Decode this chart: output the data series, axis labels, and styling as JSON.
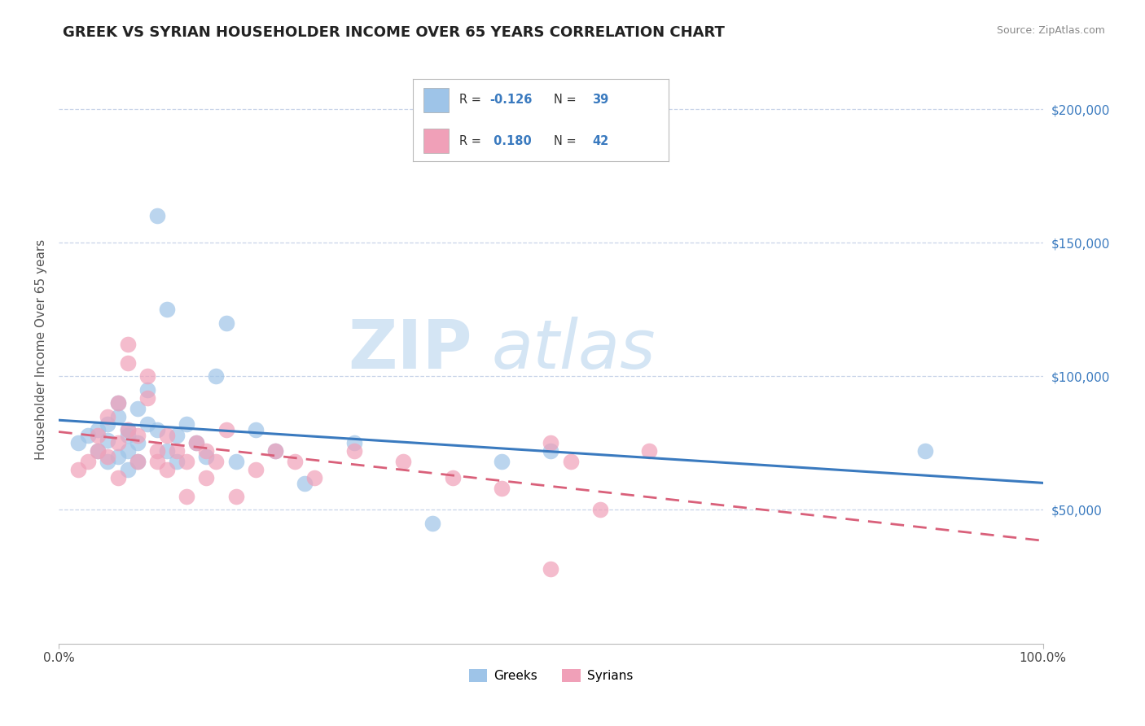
{
  "title": "GREEK VS SYRIAN HOUSEHOLDER INCOME OVER 65 YEARS CORRELATION CHART",
  "source": "Source: ZipAtlas.com",
  "ylabel": "Householder Income Over 65 years",
  "xlim": [
    0.0,
    1.0
  ],
  "ylim": [
    0,
    220000
  ],
  "xtick_labels": [
    "0.0%",
    "100.0%"
  ],
  "ytick_labels": [
    "$50,000",
    "$100,000",
    "$150,000",
    "$200,000"
  ],
  "ytick_values": [
    50000,
    100000,
    150000,
    200000
  ],
  "greek_line_color": "#3a7abf",
  "syrian_line_color": "#d9607a",
  "watermark_zip": "ZIP",
  "watermark_atlas": "atlas",
  "background_color": "#ffffff",
  "grid_color": "#c8d4e8",
  "greek_scatter_color": "#9ec4e8",
  "syrian_scatter_color": "#f0a0b8",
  "legend_blue_color": "#3a7abf",
  "legend_r_color": "#3a7abf",
  "greek_x": [
    0.02,
    0.03,
    0.04,
    0.04,
    0.05,
    0.05,
    0.05,
    0.06,
    0.06,
    0.06,
    0.07,
    0.07,
    0.07,
    0.07,
    0.08,
    0.08,
    0.08,
    0.09,
    0.09,
    0.1,
    0.1,
    0.11,
    0.11,
    0.12,
    0.12,
    0.13,
    0.14,
    0.15,
    0.16,
    0.17,
    0.18,
    0.2,
    0.22,
    0.25,
    0.3,
    0.38,
    0.45,
    0.5,
    0.88
  ],
  "greek_y": [
    75000,
    78000,
    80000,
    72000,
    82000,
    68000,
    76000,
    85000,
    70000,
    90000,
    78000,
    65000,
    72000,
    80000,
    88000,
    75000,
    68000,
    82000,
    95000,
    160000,
    80000,
    125000,
    72000,
    78000,
    68000,
    82000,
    75000,
    70000,
    100000,
    120000,
    68000,
    80000,
    72000,
    60000,
    75000,
    45000,
    68000,
    72000,
    72000
  ],
  "syrian_x": [
    0.02,
    0.03,
    0.04,
    0.04,
    0.05,
    0.05,
    0.06,
    0.06,
    0.06,
    0.07,
    0.07,
    0.07,
    0.08,
    0.08,
    0.09,
    0.09,
    0.1,
    0.1,
    0.11,
    0.11,
    0.12,
    0.13,
    0.13,
    0.14,
    0.15,
    0.15,
    0.16,
    0.17,
    0.18,
    0.2,
    0.22,
    0.24,
    0.26,
    0.3,
    0.35,
    0.4,
    0.45,
    0.5,
    0.52,
    0.55,
    0.6,
    0.5
  ],
  "syrian_y": [
    65000,
    68000,
    72000,
    78000,
    85000,
    70000,
    90000,
    75000,
    62000,
    105000,
    112000,
    80000,
    78000,
    68000,
    92000,
    100000,
    72000,
    68000,
    78000,
    65000,
    72000,
    68000,
    55000,
    75000,
    72000,
    62000,
    68000,
    80000,
    55000,
    65000,
    72000,
    68000,
    62000,
    72000,
    68000,
    62000,
    58000,
    75000,
    68000,
    50000,
    72000,
    28000
  ]
}
